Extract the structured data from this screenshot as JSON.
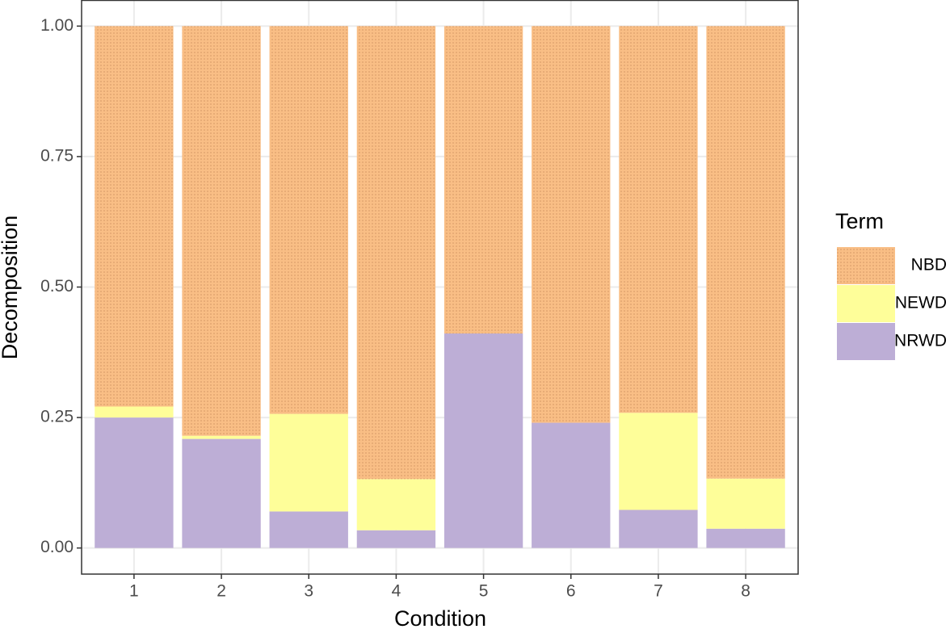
{
  "chart_data": {
    "type": "bar",
    "stacked": true,
    "x_label": "Condition",
    "y_label": "Decomposition",
    "legend_title": "Term",
    "categories": [
      "1",
      "2",
      "3",
      "4",
      "5",
      "6",
      "7",
      "8"
    ],
    "series": [
      {
        "name": "NBD",
        "color": "#f9be85",
        "values": [
          0.729,
          0.785,
          0.743,
          0.868,
          0.589,
          0.76,
          0.741,
          0.867
        ]
      },
      {
        "name": "NEWD",
        "color": "#fefe99",
        "values": [
          0.021,
          0.006,
          0.187,
          0.098,
          0,
          0,
          0.186,
          0.096
        ]
      },
      {
        "name": "NRWD",
        "color": "#bdaed6",
        "values": [
          0.25,
          0.209,
          0.07,
          0.034,
          0.411,
          0.24,
          0.073,
          0.037
        ]
      }
    ],
    "ylim": [
      -0.05,
      1.05
    ],
    "yticks": [
      {
        "value": 0,
        "label": "0.00"
      },
      {
        "value": 0.25,
        "label": "0.25"
      },
      {
        "value": 0.5,
        "label": "0.50"
      },
      {
        "value": 0.75,
        "label": "0.75"
      },
      {
        "value": 1,
        "label": "1.00"
      }
    ],
    "grid": true,
    "legend": "right"
  }
}
